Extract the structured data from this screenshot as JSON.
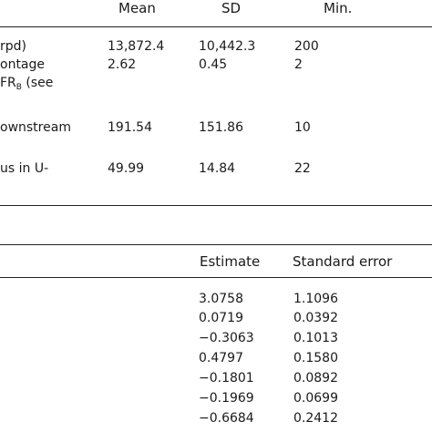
{
  "table1": {
    "headers": [
      "Mean",
      "SD",
      "Min."
    ],
    "rows": [
      {
        "label": "rpd)",
        "label_extra": [],
        "values": [
          "13,872.4",
          "10,442.3",
          "200"
        ]
      },
      {
        "label": "ontage",
        "label_extra": [
          "FR",
          "B",
          " (see"
        ],
        "values": [
          "2.62",
          "0.45",
          "2"
        ]
      },
      {
        "label": "ownstream",
        "label_extra": [],
        "values": [
          "191.54",
          "151.86",
          "10"
        ]
      },
      {
        "label": "us in U-",
        "label_extra": [],
        "values": [
          "49.99",
          "14.84",
          "22"
        ]
      }
    ]
  },
  "table2": {
    "headers": [
      "Estimate",
      "Standard error"
    ],
    "rows": [
      {
        "estimate": "3.0758",
        "se": "1.1096"
      },
      {
        "estimate": "0.0719",
        "se": "0.0392"
      },
      {
        "estimate": "−0.3063",
        "se": "0.1013"
      },
      {
        "estimate": "0.4797",
        "se": "0.1580"
      },
      {
        "estimate": "−0.1801",
        "se": "0.0892"
      },
      {
        "estimate": "−0.1969",
        "se": "0.0699"
      },
      {
        "estimate": "−0.6684",
        "se": "0.2412"
      }
    ]
  }
}
